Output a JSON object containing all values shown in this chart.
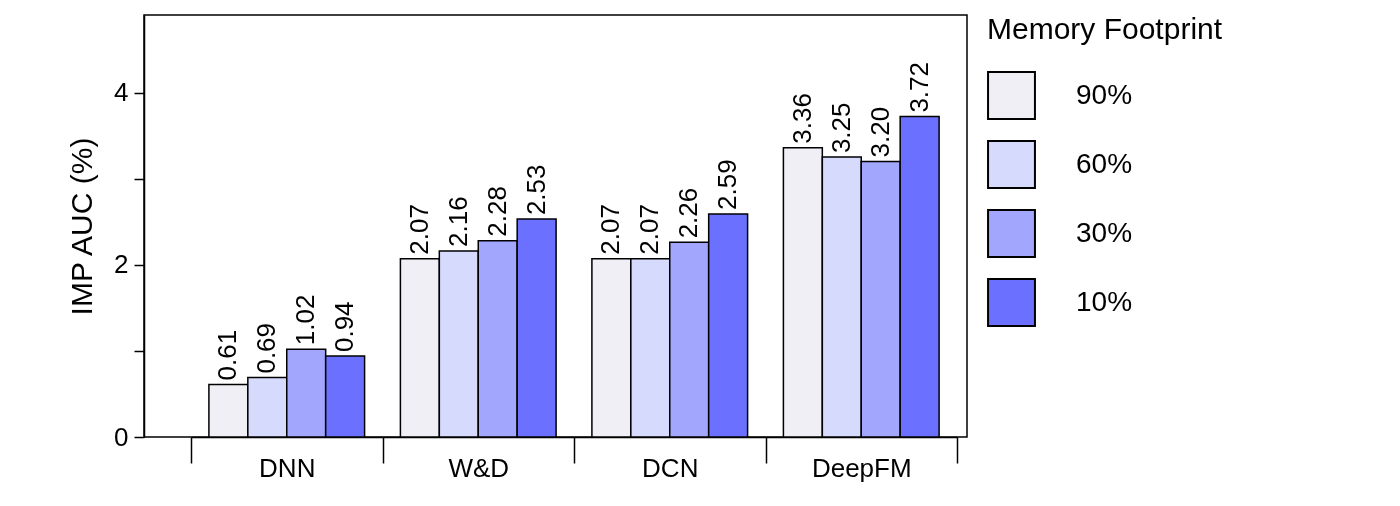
{
  "chart_data": {
    "type": "bar",
    "ylabel": "IMP AUC (%)",
    "legend_title": "Memory Footprint",
    "legend": "right",
    "grid": false,
    "categories": [
      "DNN",
      "W&D",
      "DCN",
      "DeepFM"
    ],
    "ylim": [
      0,
      4.9
    ],
    "yticks": [
      0,
      {
        "value": 1,
        "label": null
      },
      2,
      {
        "value": 3,
        "label": null
      },
      4
    ],
    "series": [
      {
        "name": "90%",
        "color": "#efeff5",
        "values": [
          0.61,
          2.07,
          2.07,
          3.36
        ],
        "value_labels": [
          "0.61",
          "2.07",
          "2.07",
          "3.36"
        ]
      },
      {
        "name": "60%",
        "color": "#d6dafc",
        "values": [
          0.69,
          2.16,
          2.07,
          3.25
        ],
        "value_labels": [
          "0.69",
          "2.16",
          "2.07",
          "3.25"
        ]
      },
      {
        "name": "30%",
        "color": "#a2a6fc",
        "values": [
          1.02,
          2.28,
          2.26,
          3.2
        ],
        "value_labels": [
          "1.02",
          "2.28",
          "2.26",
          "3.20"
        ]
      },
      {
        "name": "10%",
        "color": "#6b70fe",
        "values": [
          0.94,
          2.53,
          2.59,
          3.72
        ],
        "value_labels": [
          "0.94",
          "2.53",
          "2.59",
          "3.72"
        ]
      }
    ]
  }
}
